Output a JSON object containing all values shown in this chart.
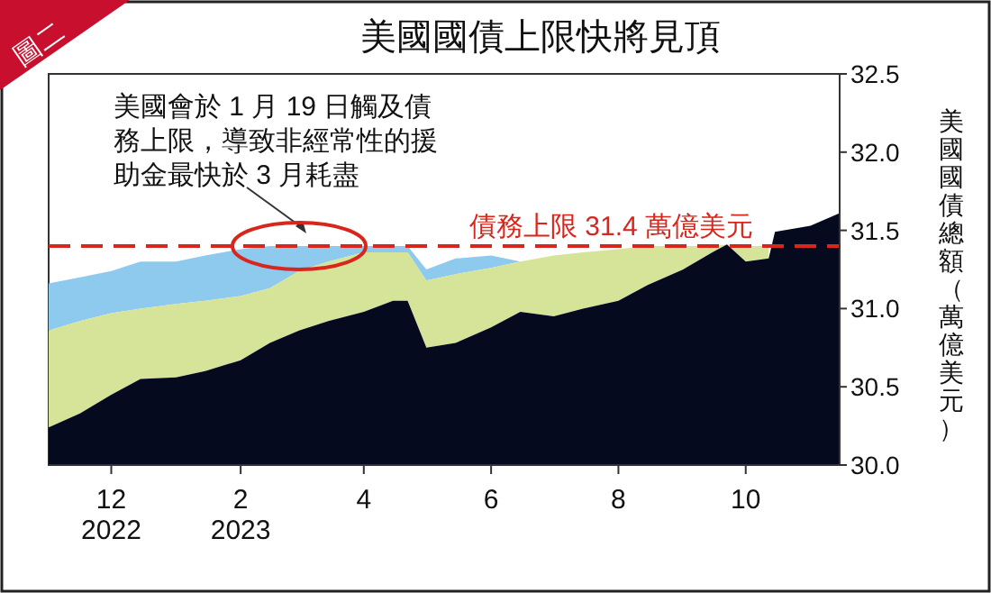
{
  "chart_data": {
    "type": "area",
    "title": "美國國債上限快將見頂",
    "ylabel": "美國國債總額（萬億美元）",
    "x": [
      "2022-11-01",
      "2022-11-16",
      "2022-12-01",
      "2022-12-15",
      "2023-01-01",
      "2023-01-15",
      "2023-02-01",
      "2023-02-15",
      "2023-03-01",
      "2023-03-15",
      "2023-04-01",
      "2023-04-15",
      "2023-04-22",
      "2023-05-01",
      "2023-05-15",
      "2023-06-01",
      "2023-06-15",
      "2023-07-01",
      "2023-07-15",
      "2023-08-01",
      "2023-08-15",
      "2023-09-01",
      "2023-09-15",
      "2023-09-22",
      "2023-10-01",
      "2023-10-12",
      "2023-10-15",
      "2023-11-01",
      "2023-11-15"
    ],
    "series": [
      {
        "color": "#8ec9ee",
        "values": [
          31.16,
          31.2,
          31.24,
          31.3,
          31.3,
          31.34,
          31.38,
          31.4,
          31.4,
          31.4,
          31.4,
          31.4,
          31.4,
          31.25,
          31.32,
          31.34,
          31.3,
          null,
          null,
          null,
          null,
          null,
          null,
          null,
          null,
          null,
          null,
          null,
          null
        ]
      },
      {
        "color": "#d6e49a",
        "values": [
          30.86,
          30.92,
          30.97,
          31.0,
          31.03,
          31.05,
          31.08,
          31.13,
          31.24,
          31.3,
          31.36,
          31.36,
          31.36,
          31.18,
          31.22,
          31.26,
          31.3,
          31.34,
          31.36,
          31.38,
          31.4,
          31.4,
          31.4,
          31.41,
          31.4,
          31.4,
          null,
          null,
          null
        ]
      },
      {
        "color": "#050a1e",
        "values": [
          30.24,
          30.33,
          30.45,
          30.55,
          30.56,
          30.6,
          30.67,
          30.78,
          30.86,
          30.92,
          30.98,
          31.05,
          31.05,
          30.75,
          30.78,
          30.88,
          30.98,
          30.95,
          31.0,
          31.05,
          31.15,
          31.25,
          31.36,
          31.41,
          31.3,
          31.32,
          31.49,
          31.53,
          31.61
        ]
      }
    ],
    "xlim": [
      "2022-11-01",
      "2023-11-15"
    ],
    "xticks": [
      {
        "value": "2022-12-01",
        "label": "12\n2022"
      },
      {
        "value": "2023-02-01",
        "label": "2\n2023"
      },
      {
        "value": "2023-04-01",
        "label": "4"
      },
      {
        "value": "2023-06-01",
        "label": "6"
      },
      {
        "value": "2023-08-01",
        "label": "8"
      },
      {
        "value": "2023-10-01",
        "label": "10"
      }
    ],
    "ylim": [
      30.0,
      32.5
    ],
    "yticks": [
      {
        "value": 30.0,
        "label": "30.0"
      },
      {
        "value": 30.5,
        "label": "30.5"
      },
      {
        "value": 31.0,
        "label": "31.0"
      },
      {
        "value": 31.5,
        "label": "31.5"
      },
      {
        "value": 32.0,
        "label": "32.0"
      },
      {
        "value": 32.5,
        "label": "32.5"
      }
    ],
    "ref_lines": [
      {
        "axis": "y",
        "value": 31.4,
        "label": "債務上限 31.4 萬億美元",
        "color": "#d9261c",
        "line_style": "dashed"
      }
    ],
    "annotations": [
      "圖二",
      {
        "text": "美國會於 1 月 19 日觸及債務上限，導致非經常性的援助金最快於 3 月耗盡",
        "x": "2023-03-01",
        "y": 31.4
      }
    ],
    "grid": false
  }
}
